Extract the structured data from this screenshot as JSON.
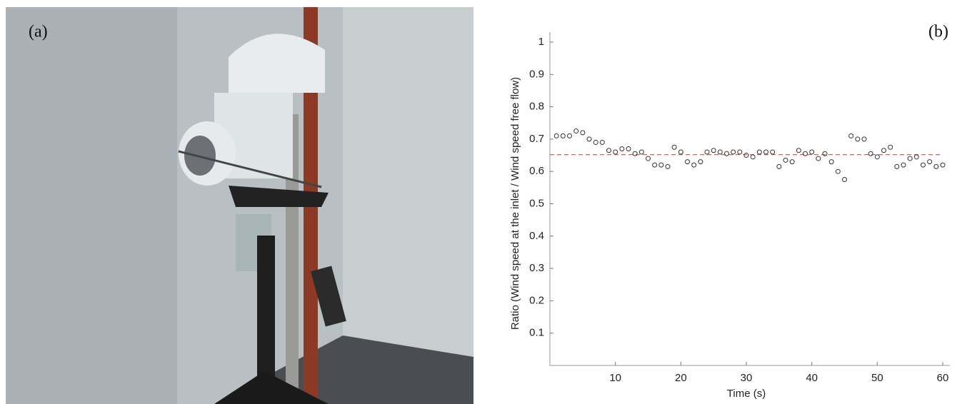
{
  "panel_labels": [
    "(a)",
    "(b)"
  ],
  "chart_data": {
    "type": "scatter",
    "xlabel": "Time (s)",
    "ylabel": "Ratio (Wind speed at the inlet / Wind speed free flow)",
    "x": [
      1,
      2,
      3,
      4,
      5,
      6,
      7,
      8,
      9,
      10,
      11,
      12,
      13,
      14,
      15,
      16,
      17,
      18,
      19,
      20,
      21,
      22,
      23,
      24,
      25,
      26,
      27,
      28,
      29,
      30,
      31,
      32,
      33,
      34,
      35,
      36,
      37,
      38,
      39,
      40,
      41,
      42,
      43,
      44,
      45,
      46,
      47,
      48,
      49,
      50,
      51,
      52,
      53,
      54,
      55,
      56,
      57,
      58,
      59,
      60
    ],
    "values": [
      0.71,
      0.71,
      0.71,
      0.725,
      0.72,
      0.7,
      0.69,
      0.69,
      0.665,
      0.66,
      0.67,
      0.67,
      0.655,
      0.66,
      0.64,
      0.62,
      0.62,
      0.615,
      0.675,
      0.66,
      0.63,
      0.62,
      0.63,
      0.66,
      0.665,
      0.66,
      0.655,
      0.66,
      0.66,
      0.65,
      0.645,
      0.66,
      0.66,
      0.66,
      0.615,
      0.635,
      0.63,
      0.665,
      0.655,
      0.66,
      0.64,
      0.655,
      0.63,
      0.6,
      0.575,
      0.71,
      0.7,
      0.7,
      0.655,
      0.645,
      0.665,
      0.675,
      0.615,
      0.62,
      0.64,
      0.645,
      0.62,
      0.63,
      0.615,
      0.62
    ],
    "color": "#333333",
    "reference_line": {
      "value": 0.652,
      "color": "#e05a5a"
    },
    "xlim": [
      0,
      60
    ],
    "xticks": [
      10,
      20,
      30,
      40,
      50,
      60
    ],
    "ylim": [
      0,
      1
    ],
    "yticks": [
      0.1,
      0.2,
      0.3,
      0.4,
      0.5,
      0.6,
      0.7,
      0.8,
      0.9,
      1
    ]
  }
}
